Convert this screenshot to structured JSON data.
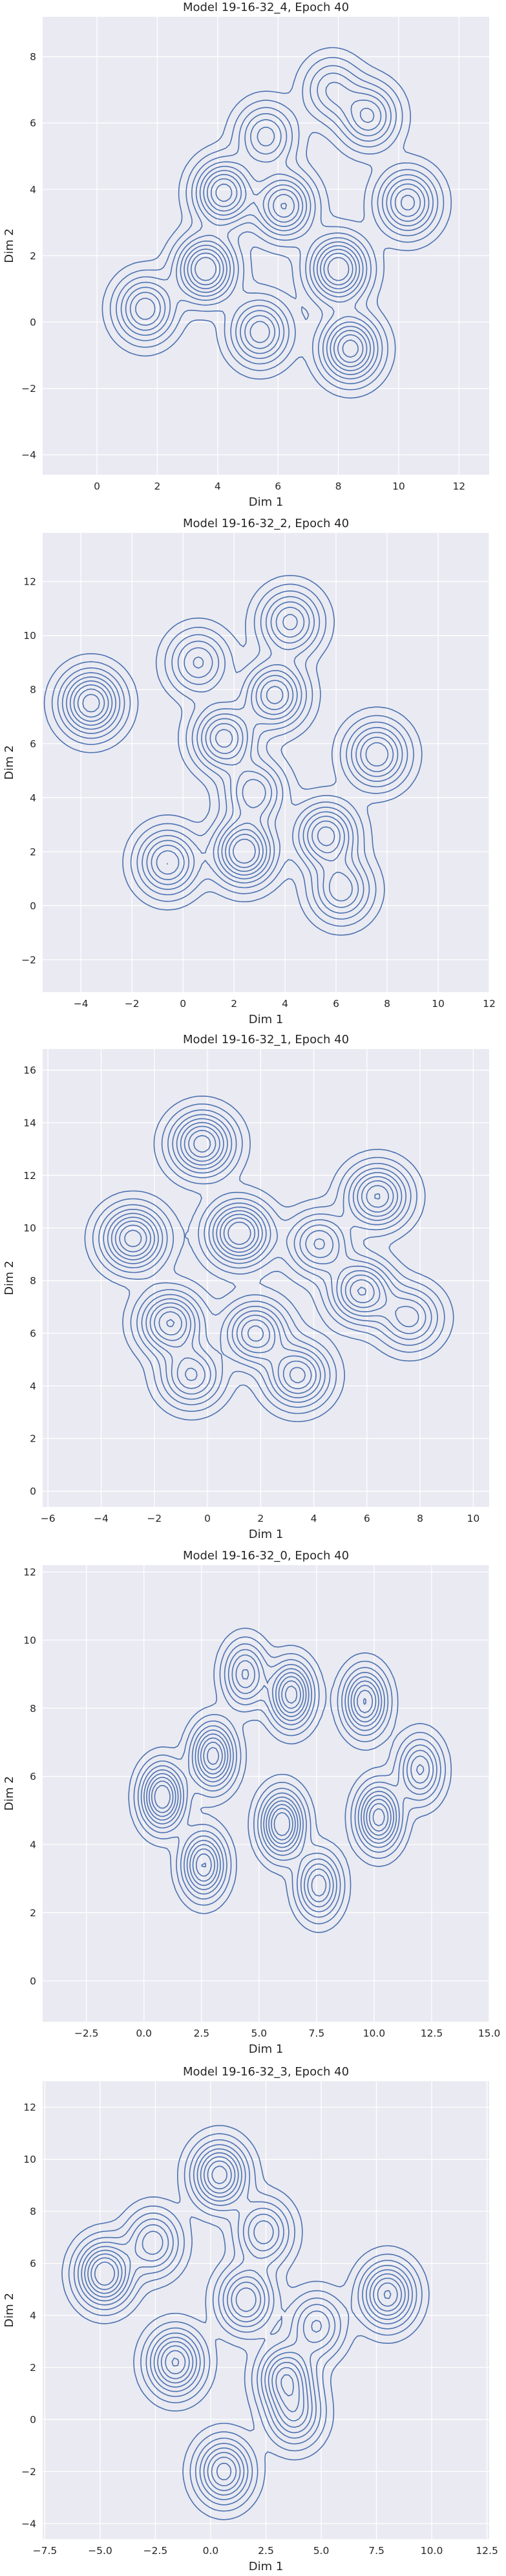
{
  "style": {
    "panel_bg": "#eaeaf2",
    "grid": "#ffffff",
    "line": "#4c72b0"
  },
  "chart_data": [
    {
      "type": "kde-contour",
      "title": "Model 19-16-32_4, Epoch 40",
      "xlabel": "Dim 1",
      "ylabel": "Dim 2",
      "xlim": [
        -1.8,
        13.0
      ],
      "ylim": [
        -4.6,
        9.2
      ],
      "xticks": [
        0,
        2,
        4,
        6,
        8,
        10,
        12
      ],
      "yticks": [
        -4,
        -2,
        0,
        2,
        4,
        6,
        8
      ],
      "grid": true,
      "levels": 9,
      "clusters": [
        {
          "x": 3.6,
          "y": 1.6,
          "w": 1.3
        },
        {
          "x": 1.6,
          "y": 0.4,
          "w": 0.9
        },
        {
          "x": 4.2,
          "y": 3.9,
          "w": 1.2
        },
        {
          "x": 6.2,
          "y": 3.5,
          "w": 1.1
        },
        {
          "x": 8.0,
          "y": 1.6,
          "w": 1.3
        },
        {
          "x": 8.4,
          "y": -0.8,
          "w": 1.2
        },
        {
          "x": 5.4,
          "y": -0.3,
          "w": 0.9
        },
        {
          "x": 10.3,
          "y": 3.6,
          "w": 1.0
        },
        {
          "x": 9.0,
          "y": 6.2,
          "w": 0.8
        },
        {
          "x": 7.8,
          "y": 7.0,
          "w": 0.5
        },
        {
          "x": 5.6,
          "y": 5.6,
          "w": 0.7
        }
      ]
    },
    {
      "type": "kde-contour",
      "title": "Model 19-16-32_2, Epoch 40",
      "xlabel": "Dim 1",
      "ylabel": "Dim 2",
      "xlim": [
        -5.5,
        12.0
      ],
      "ylim": [
        -3.2,
        13.8
      ],
      "xticks": [
        -4,
        -2,
        0,
        2,
        4,
        6,
        8,
        10,
        12
      ],
      "yticks": [
        -2,
        0,
        2,
        4,
        6,
        8,
        10,
        12
      ],
      "grid": true,
      "levels": 9,
      "clusters": [
        {
          "x": -3.6,
          "y": 7.5,
          "w": 1.3
        },
        {
          "x": 1.6,
          "y": 6.2,
          "w": 1.1
        },
        {
          "x": 3.6,
          "y": 7.8,
          "w": 1.1
        },
        {
          "x": 4.2,
          "y": 10.5,
          "w": 0.9
        },
        {
          "x": 2.4,
          "y": 2.0,
          "w": 1.4
        },
        {
          "x": -0.6,
          "y": 1.6,
          "w": 1.0
        },
        {
          "x": 5.6,
          "y": 2.6,
          "w": 1.1
        },
        {
          "x": 7.6,
          "y": 5.6,
          "w": 1.0
        },
        {
          "x": 6.2,
          "y": 0.6,
          "w": 0.8
        },
        {
          "x": 2.8,
          "y": 4.2,
          "w": 0.8
        },
        {
          "x": 0.6,
          "y": 9.0,
          "w": 0.7
        }
      ]
    },
    {
      "type": "kde-contour",
      "title": "Model 19-16-32_1, Epoch 40",
      "xlabel": "Dim 1",
      "ylabel": "Dim 2",
      "xlim": [
        -6.2,
        10.6
      ],
      "ylim": [
        -0.6,
        16.8
      ],
      "xticks": [
        -6,
        -4,
        -2,
        0,
        2,
        4,
        6,
        8,
        10
      ],
      "yticks": [
        0,
        2,
        4,
        6,
        8,
        10,
        12,
        14,
        16
      ],
      "grid": true,
      "levels": 9,
      "clusters": [
        {
          "x": -0.2,
          "y": 13.2,
          "w": 1.2
        },
        {
          "x": -2.8,
          "y": 9.6,
          "w": 1.2
        },
        {
          "x": 1.2,
          "y": 9.8,
          "w": 1.3
        },
        {
          "x": -1.4,
          "y": 6.4,
          "w": 1.1
        },
        {
          "x": 1.8,
          "y": 6.0,
          "w": 1.0
        },
        {
          "x": 3.4,
          "y": 4.4,
          "w": 1.0
        },
        {
          "x": 6.4,
          "y": 11.2,
          "w": 1.1
        },
        {
          "x": 5.8,
          "y": 7.6,
          "w": 1.1
        },
        {
          "x": 7.6,
          "y": 6.6,
          "w": 0.7
        },
        {
          "x": -0.6,
          "y": 4.4,
          "w": 0.8
        },
        {
          "x": 4.2,
          "y": 9.4,
          "w": 0.8
        }
      ]
    },
    {
      "type": "kde-contour",
      "title": "Model 19-16-32_0, Epoch 40",
      "xlabel": "Dim 1",
      "ylabel": "Dim 2",
      "xlim": [
        -4.4,
        15.0
      ],
      "ylim": [
        -1.2,
        12.2
      ],
      "xticks": [
        -2.5,
        0.0,
        2.5,
        5.0,
        7.5,
        10.0,
        12.5,
        15.0
      ],
      "xticklabels": [
        "−2.5",
        "0.0",
        "2.5",
        "5.0",
        "7.5",
        "10.0",
        "12.5",
        "15.0"
      ],
      "yticks": [
        0,
        2,
        4,
        6,
        8,
        10,
        12
      ],
      "grid": true,
      "levels": 9,
      "clusters": [
        {
          "x": 0.8,
          "y": 5.4,
          "w": 1.3
        },
        {
          "x": 3.0,
          "y": 6.6,
          "w": 1.2
        },
        {
          "x": 2.6,
          "y": 3.4,
          "w": 1.1
        },
        {
          "x": 6.0,
          "y": 4.6,
          "w": 1.3
        },
        {
          "x": 6.4,
          "y": 8.4,
          "w": 1.2
        },
        {
          "x": 9.6,
          "y": 8.2,
          "w": 1.1
        },
        {
          "x": 10.2,
          "y": 4.8,
          "w": 1.2
        },
        {
          "x": 12.0,
          "y": 6.2,
          "w": 0.8
        },
        {
          "x": 7.6,
          "y": 2.8,
          "w": 0.9
        },
        {
          "x": 4.4,
          "y": 9.0,
          "w": 0.8
        }
      ]
    },
    {
      "type": "kde-contour",
      "title": "Model 19-16-32_3, Epoch 40",
      "xlabel": "Dim 1",
      "ylabel": "Dim 2",
      "xlim": [
        -7.6,
        12.6
      ],
      "ylim": [
        -4.6,
        13.0
      ],
      "xticks": [
        -7.5,
        -5.0,
        -2.5,
        0.0,
        2.5,
        5.0,
        7.5,
        10.0,
        12.5
      ],
      "xticklabels": [
        "−7.5",
        "−5.0",
        "−2.5",
        "0.0",
        "2.5",
        "5.0",
        "7.5",
        "10.0",
        "12.5"
      ],
      "yticks": [
        -4,
        -2,
        0,
        2,
        4,
        6,
        8,
        10,
        12
      ],
      "grid": true,
      "levels": 9,
      "clusters": [
        {
          "x": -4.8,
          "y": 5.6,
          "w": 1.4
        },
        {
          "x": 0.4,
          "y": 9.4,
          "w": 1.3
        },
        {
          "x": -1.6,
          "y": 2.2,
          "w": 1.2
        },
        {
          "x": 1.6,
          "y": 4.6,
          "w": 1.0
        },
        {
          "x": 3.4,
          "y": 1.6,
          "w": 1.1
        },
        {
          "x": 0.6,
          "y": -2.0,
          "w": 1.1
        },
        {
          "x": 8.0,
          "y": 4.8,
          "w": 1.2
        },
        {
          "x": 3.8,
          "y": 0.2,
          "w": 0.8
        },
        {
          "x": -2.6,
          "y": 6.8,
          "w": 0.8
        },
        {
          "x": 2.4,
          "y": 7.2,
          "w": 0.8
        },
        {
          "x": 4.8,
          "y": 3.6,
          "w": 0.7
        }
      ]
    }
  ]
}
